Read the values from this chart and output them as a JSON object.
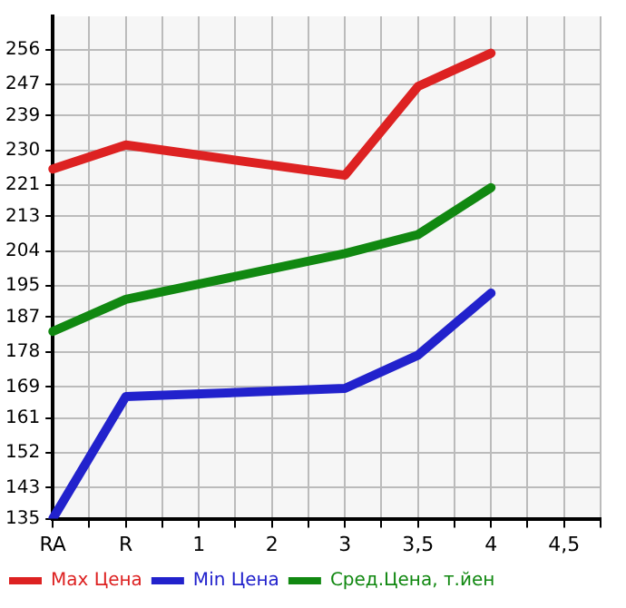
{
  "chart_data": {
    "type": "line",
    "categories": [
      "RA",
      null,
      "R",
      null,
      "1",
      null,
      "2",
      null,
      "3",
      null,
      "3,5",
      null,
      "4",
      null,
      "4,5",
      null
    ],
    "series": [
      {
        "name": "Max Цена",
        "color": "#dd2222",
        "values": [
          225.2,
          null,
          231.4,
          null,
          null,
          null,
          null,
          null,
          223.6,
          null,
          246.5,
          null,
          255.1,
          null,
          null,
          null
        ]
      },
      {
        "name": "Min Цена",
        "color": "#2222cc",
        "values": [
          135,
          null,
          166.5,
          null,
          null,
          null,
          null,
          null,
          168.6,
          null,
          177.2,
          null,
          193.2,
          null,
          null,
          null
        ]
      },
      {
        "name": "Сред.Цена, т.йен",
        "color": "#118811",
        "values": [
          183.3,
          null,
          191.6,
          null,
          null,
          null,
          null,
          null,
          203.4,
          null,
          208.3,
          null,
          220.4,
          null,
          null,
          null
        ]
      }
    ],
    "ylim": [
      135,
      264.6
    ],
    "yticks": [
      135,
      143,
      152,
      161,
      169,
      178,
      187,
      195,
      204,
      213,
      221,
      230,
      239,
      247,
      256
    ],
    "grid": true,
    "legend": "bottom",
    "marker": "none",
    "line_style": "solid"
  }
}
